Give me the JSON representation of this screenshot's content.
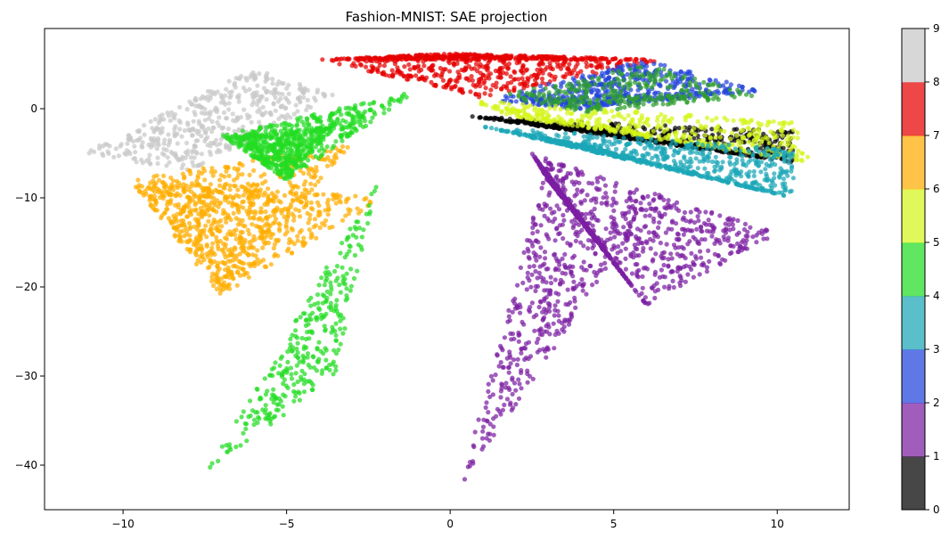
{
  "chart_data": {
    "type": "scatter",
    "title": "Fashion-MNIST: SAE projection",
    "xlabel": "",
    "ylabel": "",
    "xlim": [
      -12.4,
      12.2
    ],
    "ylim": [
      -45,
      9
    ],
    "xticks": [
      -10,
      -5,
      0,
      5,
      10
    ],
    "yticks": [
      0,
      -10,
      -20,
      -30,
      -40
    ],
    "grid": false,
    "legend": "none",
    "colorbar": {
      "ticks": [
        0,
        1,
        2,
        3,
        4,
        5,
        6,
        7,
        8,
        9
      ],
      "colors": [
        "#000000",
        "#7b1fa2",
        "#2244dd",
        "#1aa6b7",
        "#2e9e2e",
        "#22dd22",
        "#d6f51a",
        "#ffad00",
        "#e60000",
        "#c8c8c8"
      ]
    },
    "clusters": [
      {
        "label": 9,
        "shape": "tri",
        "p": [
          [
            -11.3,
            -5
          ],
          [
            -6,
            4.5
          ],
          [
            -3.5,
            1.5
          ],
          [
            -8,
            -7
          ]
        ],
        "count": 450
      },
      {
        "label": 7,
        "shape": "tri",
        "p": [
          [
            -9.8,
            -8
          ],
          [
            -3,
            -4
          ],
          [
            -7,
            -21
          ],
          [
            -2,
            -10
          ]
        ],
        "count": 950
      },
      {
        "label": 5,
        "shape": "tri",
        "p": [
          [
            -7,
            -3
          ],
          [
            -1,
            2
          ],
          [
            -5,
            -8
          ],
          [
            -3.5,
            -2
          ]
        ],
        "count": 700
      },
      {
        "label": 5,
        "shape": "tri",
        "p": [
          [
            -7.5,
            -41
          ],
          [
            -2.2,
            -8
          ],
          [
            -3.5,
            -30
          ]
        ],
        "count": 320
      },
      {
        "label": 8,
        "shape": "tri",
        "p": [
          [
            -4,
            5.5
          ],
          [
            0,
            6.2
          ],
          [
            6.5,
            5.5
          ],
          [
            1,
            1.2
          ]
        ],
        "count": 750
      },
      {
        "label": 2,
        "shape": "tri",
        "p": [
          [
            1,
            1
          ],
          [
            6,
            5.5
          ],
          [
            9.5,
            2
          ],
          [
            4,
            0
          ]
        ],
        "count": 500
      },
      {
        "label": 4,
        "shape": "tri",
        "p": [
          [
            1.5,
            1.5
          ],
          [
            6,
            5
          ],
          [
            9.5,
            1.5
          ],
          [
            4,
            -0.5
          ]
        ],
        "count": 300
      },
      {
        "label": 0,
        "shape": "tri",
        "p": [
          [
            0.5,
            -0.8
          ],
          [
            10.5,
            -2.5
          ],
          [
            10.5,
            -6
          ],
          [
            4,
            -2
          ]
        ],
        "count": 600
      },
      {
        "label": 6,
        "shape": "tri",
        "p": [
          [
            0.5,
            1
          ],
          [
            10.5,
            -1.5
          ],
          [
            11,
            -6
          ],
          [
            2,
            -1
          ]
        ],
        "count": 450
      },
      {
        "label": 3,
        "shape": "tri",
        "p": [
          [
            1,
            -2
          ],
          [
            10.5,
            -4.5
          ],
          [
            10.5,
            -10
          ],
          [
            4,
            -4
          ]
        ],
        "count": 750
      },
      {
        "label": 1,
        "shape": "tri",
        "p": [
          [
            2.5,
            -5
          ],
          [
            10,
            -14
          ],
          [
            6,
            -22
          ],
          [
            3,
            -8
          ]
        ],
        "count": 1000
      },
      {
        "label": 1,
        "shape": "tri",
        "p": [
          [
            0.3,
            -42.5
          ],
          [
            3,
            -6
          ],
          [
            5,
            -17
          ]
        ],
        "count": 420
      }
    ]
  }
}
